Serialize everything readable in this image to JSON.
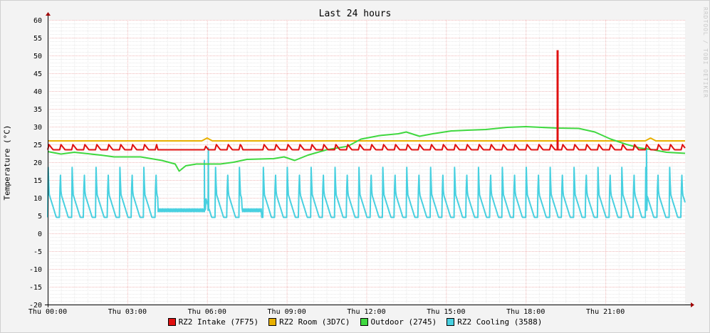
{
  "chart_data": {
    "type": "line",
    "title": "Last 24 hours",
    "ylabel": "Temperature (°C)",
    "watermark": "RRDTOOL / TOBI OETIKER",
    "ylim": [
      -20,
      60
    ],
    "y_ticks": [
      60,
      55,
      50,
      45,
      40,
      35,
      30,
      25,
      20,
      15,
      10,
      5,
      0,
      -5,
      -10,
      -15,
      -20
    ],
    "x_range_hours": [
      0,
      24
    ],
    "x_tick_labels": [
      "Thu 00:00",
      "Thu 03:00",
      "Thu 06:00",
      "Thu 09:00",
      "Thu 12:00",
      "Thu 15:00",
      "Thu 18:00",
      "Thu 21:00"
    ],
    "x_tick_hours": [
      0,
      3,
      6,
      9,
      12,
      15,
      18,
      21
    ],
    "grid": true,
    "legend_placement": "bottom",
    "series": [
      {
        "name": "RZ2 Intake (7F75)",
        "color": "#e01010",
        "pattern": "sawtooth",
        "base": 23.5,
        "peak": 25.0,
        "period_h": 0.45,
        "flat_intervals": [
          [
            4.1,
            5.9
          ],
          [
            7.3,
            8.0
          ]
        ],
        "spikes": [
          {
            "x": 19.2,
            "y": 51.5
          }
        ],
        "points": [
          [
            0,
            24.0
          ],
          [
            24,
            23.5
          ]
        ]
      },
      {
        "name": "RZ2 Room (3D7C)",
        "color": "#e8b000",
        "points": [
          [
            0,
            26.0
          ],
          [
            5.8,
            26.0
          ],
          [
            6.0,
            26.8
          ],
          [
            6.2,
            26.0
          ],
          [
            22.5,
            26.0
          ],
          [
            22.7,
            26.8
          ],
          [
            22.9,
            26.0
          ],
          [
            24,
            26.0
          ]
        ]
      },
      {
        "name": "Outdoor (2745)",
        "color": "#40d840",
        "points": [
          [
            0,
            23.0
          ],
          [
            0.5,
            22.3
          ],
          [
            1.0,
            22.8
          ],
          [
            2.0,
            22.0
          ],
          [
            2.5,
            21.5
          ],
          [
            3.5,
            21.5
          ],
          [
            4.3,
            20.5
          ],
          [
            4.8,
            19.5
          ],
          [
            4.95,
            17.5
          ],
          [
            5.2,
            19.0
          ],
          [
            5.6,
            19.5
          ],
          [
            6.5,
            19.5
          ],
          [
            7.0,
            20.0
          ],
          [
            7.5,
            20.8
          ],
          [
            8.5,
            21.0
          ],
          [
            8.9,
            21.5
          ],
          [
            9.3,
            20.5
          ],
          [
            9.8,
            22.0
          ],
          [
            10.5,
            23.5
          ],
          [
            11.3,
            24.5
          ],
          [
            11.8,
            26.5
          ],
          [
            12.5,
            27.5
          ],
          [
            13.2,
            28.0
          ],
          [
            13.5,
            28.5
          ],
          [
            14.0,
            27.3
          ],
          [
            14.5,
            28.0
          ],
          [
            15.2,
            28.8
          ],
          [
            15.8,
            29.0
          ],
          [
            16.5,
            29.2
          ],
          [
            17.3,
            29.8
          ],
          [
            18.0,
            30.0
          ],
          [
            18.6,
            29.8
          ],
          [
            19.2,
            29.6
          ],
          [
            20.0,
            29.5
          ],
          [
            20.6,
            28.5
          ],
          [
            21.2,
            26.5
          ],
          [
            21.8,
            25.0
          ],
          [
            22.3,
            24.0
          ],
          [
            22.8,
            23.5
          ],
          [
            23.3,
            22.8
          ],
          [
            24,
            22.5
          ]
        ]
      },
      {
        "name": "RZ2 Cooling (3588)",
        "color": "#48d0e0",
        "pattern": "spikes",
        "base": 4.5,
        "peak": 19.0,
        "period_h": 0.45,
        "flat_intervals": [
          [
            4.15,
            5.95
          ],
          [
            7.3,
            8.05
          ]
        ],
        "flat_level": 6.5,
        "extra_spikes": [
          {
            "x": 5.9,
            "y": 20.5
          },
          {
            "x": 6.05,
            "y": 24.0
          },
          {
            "x": 22.55,
            "y": 24.0
          }
        ],
        "points": [
          [
            0,
            16.0
          ],
          [
            24,
            4.0
          ]
        ]
      }
    ]
  }
}
